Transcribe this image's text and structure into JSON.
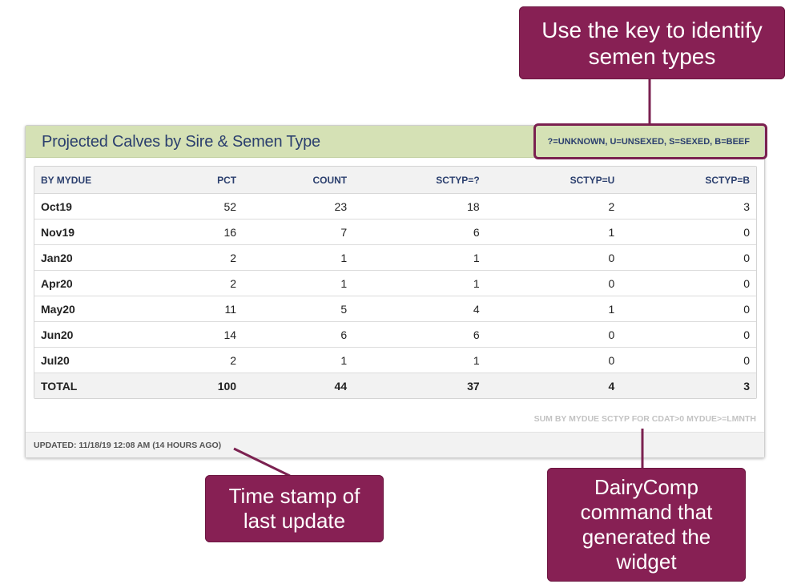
{
  "widget": {
    "title": "Projected Calves by Sire & Semen Type",
    "key": "?=UNKNOWN, U=UNSEXED, S=SEXED, B=BEEF",
    "command": "SUM BY MYDUE SCTYP FOR CDAT>0 MYDUE>=LMNTH",
    "updated": "UPDATED: 11/18/19 12:08 AM (14 HOURS AGO)"
  },
  "table": {
    "headers": [
      "BY MYDUE",
      "PCT",
      "COUNT",
      "SCTYP=?",
      "SCTYP=U",
      "SCTYP=B"
    ],
    "rows": [
      [
        "Oct19",
        "52",
        "23",
        "18",
        "2",
        "3"
      ],
      [
        "Nov19",
        "16",
        "7",
        "6",
        "1",
        "0"
      ],
      [
        "Jan20",
        "2",
        "1",
        "1",
        "0",
        "0"
      ],
      [
        "Apr20",
        "2",
        "1",
        "1",
        "0",
        "0"
      ],
      [
        "May20",
        "11",
        "5",
        "4",
        "1",
        "0"
      ],
      [
        "Jun20",
        "14",
        "6",
        "6",
        "0",
        "0"
      ],
      [
        "Jul20",
        "2",
        "1",
        "1",
        "0",
        "0"
      ]
    ],
    "total": [
      "TOTAL",
      "100",
      "44",
      "37",
      "4",
      "3"
    ]
  },
  "callouts": {
    "key": [
      "Use the key to identify",
      "semen types"
    ],
    "time": [
      "Time stamp of",
      "last update"
    ],
    "command": [
      "DairyComp",
      "command that",
      "generated the",
      "widget"
    ]
  },
  "colors": {
    "header_bg": "#d5e1b5",
    "title": "#2b3f6e",
    "callout_bg": "#872054"
  }
}
